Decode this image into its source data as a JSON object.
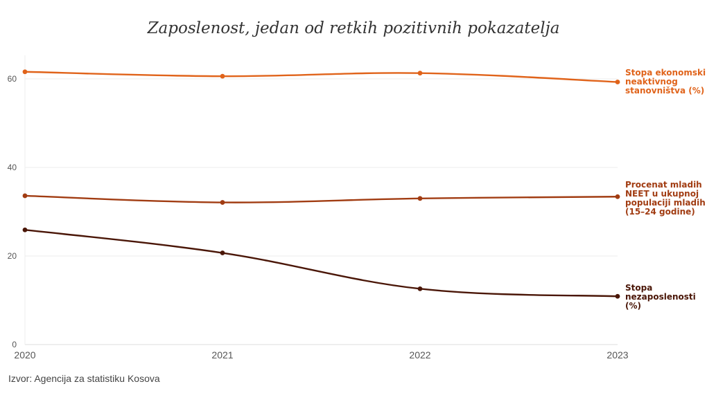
{
  "chart_data": {
    "type": "line",
    "title": "Zaposlenost, jedan od retkih pozitivnih pokazatelja",
    "xlabel": "",
    "ylabel": "",
    "x": [
      "2020",
      "2021",
      "2022",
      "2023"
    ],
    "ylim": [
      0,
      65
    ],
    "yticks": [
      0,
      20,
      40,
      60
    ],
    "grid": true,
    "legend": "direct-labels-right",
    "series": [
      {
        "name": "Stopa ekonomski neaktivnog stanovništva (%)",
        "label_lines": [
          "Stopa ekonomski",
          "neaktivnog",
          "stanovništva (%)"
        ],
        "color": "#e0631a",
        "values": [
          61.6,
          60.6,
          61.3,
          59.3
        ]
      },
      {
        "name": "Procenat mladih NEET u ukupnoj populaciji mladih (15–24 godine)",
        "label_lines": [
          "Procenat mladih",
          "NEET u ukupnoj",
          "populaciji mladih",
          "(15–24 godine)"
        ],
        "color": "#a13c12",
        "values": [
          33.6,
          32.1,
          33.0,
          33.4
        ]
      },
      {
        "name": "Stopa nezaposlenosti (%)",
        "label_lines": [
          "Stopa",
          "nezaposlenosti",
          "(%)"
        ],
        "color": "#4a1607",
        "values": [
          25.9,
          20.7,
          12.6,
          10.9
        ]
      }
    ]
  },
  "source": "Izvor: Agencija za statistiku Kosova"
}
